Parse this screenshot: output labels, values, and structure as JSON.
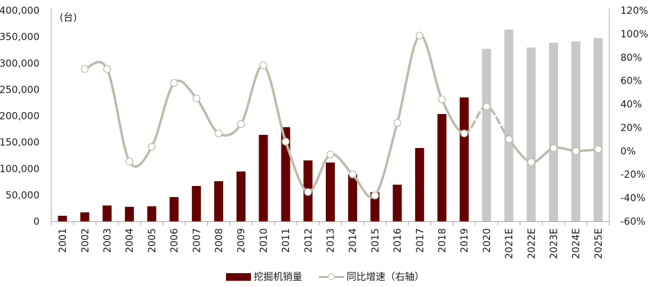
{
  "chart_data": {
    "type": "bar+line",
    "title": "",
    "unit_label": "(台)",
    "categories": [
      "2001",
      "2002",
      "2003",
      "2004",
      "2005",
      "2006",
      "2007",
      "2008",
      "2009",
      "2010",
      "2011",
      "2012",
      "2013",
      "2014",
      "2015",
      "2016",
      "2017",
      "2018",
      "2019",
      "2020",
      "2021E",
      "2022E",
      "2023E",
      "2024E",
      "2025E"
    ],
    "series": [
      {
        "name": "挖掘机销量",
        "type": "bar",
        "axis": "left",
        "color_actual": "#640000",
        "color_forecast": "#c8c8c8",
        "actual_until_index": 18,
        "values": [
          10500,
          17000,
          30000,
          27500,
          28500,
          46000,
          67000,
          76000,
          94500,
          164000,
          178500,
          115500,
          111500,
          89000,
          55000,
          69500,
          139000,
          203500,
          235000,
          327000,
          363500,
          329500,
          338500,
          341000,
          347500
        ]
      },
      {
        "name": "同比增速（右轴）",
        "type": "line",
        "axis": "right",
        "color": "#bdbbab",
        "smooth": true,
        "dashed_segment": [
          18,
          20
        ],
        "values": [
          null,
          70,
          70,
          -9,
          3.5,
          58,
          45,
          15,
          23,
          73,
          8,
          -35,
          -3,
          -20,
          -38,
          24,
          98.5,
          44,
          15,
          38,
          10,
          -9.5,
          2.5,
          0,
          1.5
        ]
      }
    ],
    "left_axis": {
      "min": 0,
      "max": 400000,
      "step": 50000,
      "tick_labels": [
        "0",
        "50,000",
        "100,000",
        "150,000",
        "200,000",
        "250,000",
        "300,000",
        "350,000",
        "400,000"
      ]
    },
    "right_axis": {
      "min": -60,
      "max": 120,
      "step": 20,
      "tick_labels": [
        "-60%",
        "-40%",
        "-20%",
        "0%",
        "20%",
        "40%",
        "60%",
        "80%",
        "100%",
        "120%"
      ]
    },
    "xlabel": "",
    "ylabel": "台",
    "grid": false,
    "legend_position": "bottom"
  },
  "legend": {
    "bar_label": "挖掘机销量",
    "line_label": "同比增速（右轴）"
  }
}
